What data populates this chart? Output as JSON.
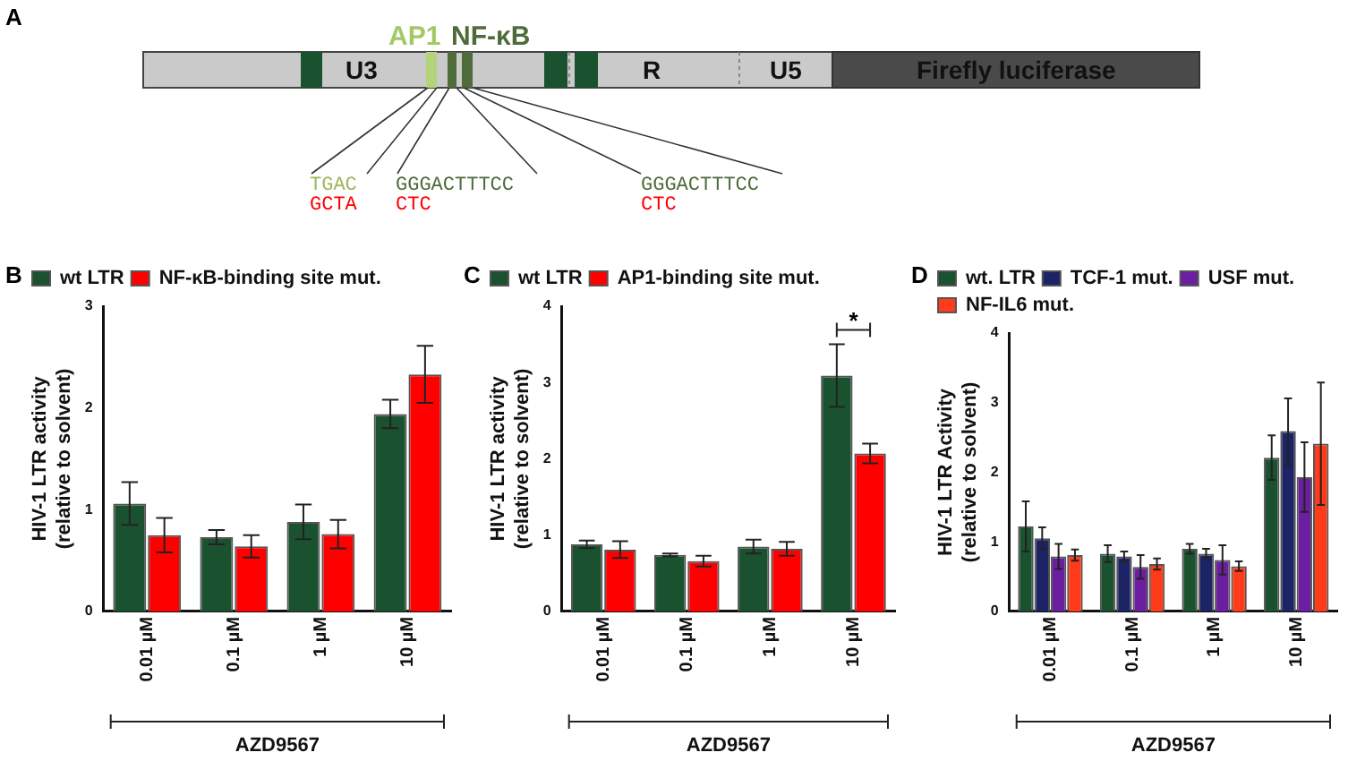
{
  "chart_data": [
    {
      "type": "other",
      "title": "A",
      "annotations": [
        "AP1",
        "NF-κB",
        "U3",
        "R",
        "U5",
        "Firefly luciferase",
        "TGAC",
        "GCTA",
        "GGGACTTTCC",
        "CTC",
        "GGGACTTTCC",
        "CTC"
      ]
    },
    {
      "type": "bar",
      "title": "B",
      "xlabel": "AZD9567",
      "ylabel": "HIV-1 LTR activity\n(relative to solvent)",
      "categories": [
        "0.01 µM",
        "0.1 µM",
        "1 µM",
        "10 µM"
      ],
      "ylim": [
        0,
        3
      ],
      "yticks": [
        0,
        1,
        2,
        3
      ],
      "grid": false,
      "legend": "top left",
      "series": [
        {
          "name": "wt LTR",
          "color": "#1a5230",
          "values": [
            1.06,
            0.73,
            0.88,
            1.94
          ],
          "errors": [
            0.21,
            0.07,
            0.17,
            0.14
          ]
        },
        {
          "name": "NF-κB-binding site mut.",
          "color": "#ff0000",
          "values": [
            0.75,
            0.64,
            0.76,
            2.33
          ],
          "errors": [
            0.17,
            0.11,
            0.14,
            0.28
          ]
        }
      ]
    },
    {
      "type": "bar",
      "title": "C",
      "xlabel": "AZD9567",
      "ylabel": "HIV-1 LTR activity\n(relative to solvent)",
      "categories": [
        "0.01 µM",
        "0.1 µM",
        "1 µM",
        "10 µM"
      ],
      "ylim": [
        0,
        4
      ],
      "yticks": [
        0,
        1,
        2,
        3,
        4
      ],
      "grid": false,
      "legend": "top left",
      "annotations": [
        "*"
      ],
      "series": [
        {
          "name": "wt LTR",
          "color": "#1a5230",
          "values": [
            0.88,
            0.74,
            0.85,
            3.09
          ],
          "errors": [
            0.05,
            0.02,
            0.09,
            0.41
          ]
        },
        {
          "name": "AP1-binding site mut.",
          "color": "#ff0000",
          "values": [
            0.81,
            0.66,
            0.82,
            2.07
          ],
          "errors": [
            0.11,
            0.07,
            0.09,
            0.13
          ]
        }
      ]
    },
    {
      "type": "bar",
      "title": "D",
      "xlabel": "AZD9567",
      "ylabel": "HIV-1 LTR Activity\n(relative to solvent)",
      "categories": [
        "0.01 µM",
        "0.1 µM",
        "1 µM",
        "10 µM"
      ],
      "ylim": [
        0,
        4
      ],
      "yticks": [
        0,
        1,
        2,
        3,
        4
      ],
      "grid": false,
      "legend": "top left",
      "series": [
        {
          "name": "wt. LTR",
          "color": "#1a5230",
          "values": [
            1.22,
            0.83,
            0.9,
            2.21
          ],
          "errors": [
            0.36,
            0.12,
            0.07,
            0.32
          ]
        },
        {
          "name": "TCF-1 mut.",
          "color": "#1c2466",
          "values": [
            1.05,
            0.79,
            0.83,
            2.59
          ],
          "errors": [
            0.16,
            0.07,
            0.07,
            0.47
          ]
        },
        {
          "name": "USF mut.",
          "color": "#6b1fa0",
          "values": [
            0.79,
            0.64,
            0.74,
            1.93
          ],
          "errors": [
            0.18,
            0.17,
            0.21,
            0.5
          ]
        },
        {
          "name": "NF-IL6 mut.",
          "color": "#ff3b1a",
          "values": [
            0.81,
            0.68,
            0.65,
            2.41
          ],
          "errors": [
            0.08,
            0.08,
            0.07,
            0.88
          ]
        }
      ]
    }
  ]
}
